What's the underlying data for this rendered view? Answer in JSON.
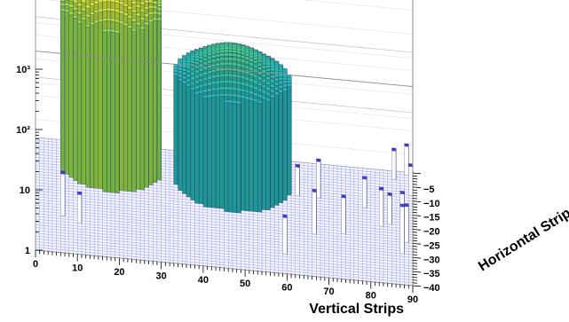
{
  "chart_data": {
    "type": "lego3d",
    "xlabel": "Vertical Strips",
    "ylabel": "Horizontal Strips",
    "zscale": "log",
    "xlim": [
      0,
      90
    ],
    "ylim": [
      -40,
      0
    ],
    "zlim": [
      1,
      3000
    ],
    "x_ticks": [
      0,
      10,
      20,
      30,
      40,
      50,
      60,
      70,
      80,
      90
    ],
    "y_ticks": [
      -5,
      -10,
      -15,
      -20,
      -25,
      -30,
      -35,
      -40
    ],
    "z_ticks": [
      {
        "value": 1,
        "label": "1"
      },
      {
        "value": 10,
        "label": "10"
      },
      {
        "value": 100,
        "label": "10²"
      },
      {
        "value": 1000,
        "label": "10³"
      }
    ],
    "x_tick_labels": [
      "0",
      "10",
      "20",
      "30",
      "40",
      "50",
      "60",
      "70",
      "80",
      "90"
    ],
    "y_tick_labels": [
      "−5",
      "−10",
      "−15",
      "−20",
      "−25",
      "−30",
      "−35",
      "−40"
    ],
    "z_tick_labels": [
      "1",
      "10",
      "10²",
      "10³"
    ],
    "grid": true,
    "colormap": "viridis",
    "clusters": [
      {
        "center_x": 18,
        "center_y": -7,
        "sigma_x": 9,
        "sigma_y": 7,
        "peak": 2200
      },
      {
        "center_x": 47,
        "center_y": -10,
        "sigma_x": 10,
        "sigma_y": 7,
        "peak": 130
      }
    ],
    "scattered_bins": [
      {
        "x": 6,
        "y": -27,
        "z": 5
      },
      {
        "x": 10,
        "y": -29,
        "z": 3
      },
      {
        "x": 59,
        "y": -33,
        "z": 4
      },
      {
        "x": 66,
        "y": -25,
        "z": 5
      },
      {
        "x": 73,
        "y": -24,
        "z": 4
      },
      {
        "x": 82,
        "y": -20,
        "z": 4
      },
      {
        "x": 84,
        "y": -19,
        "z": 3
      },
      {
        "x": 87,
        "y": -29,
        "z": 6
      },
      {
        "x": 87,
        "y": -18,
        "z": 3
      },
      {
        "x": 88,
        "y": -25,
        "z": 4
      },
      {
        "x": 89,
        "y": -8,
        "z": 3
      },
      {
        "x": 85,
        "y": -3,
        "z": 3
      },
      {
        "x": 88,
        "y": -1,
        "z": 3
      },
      {
        "x": 62,
        "y": -12,
        "z": 3
      },
      {
        "x": 67,
        "y": -12,
        "z": 4
      },
      {
        "x": 78,
        "y": -14,
        "z": 3
      }
    ],
    "colors": {
      "background": "#ffffff",
      "floor_grid": "#5b5bd6",
      "frame": "#8a8a8a",
      "low_bar_top": "#3d3ddb",
      "low_bar_side": "#ffffff"
    }
  }
}
